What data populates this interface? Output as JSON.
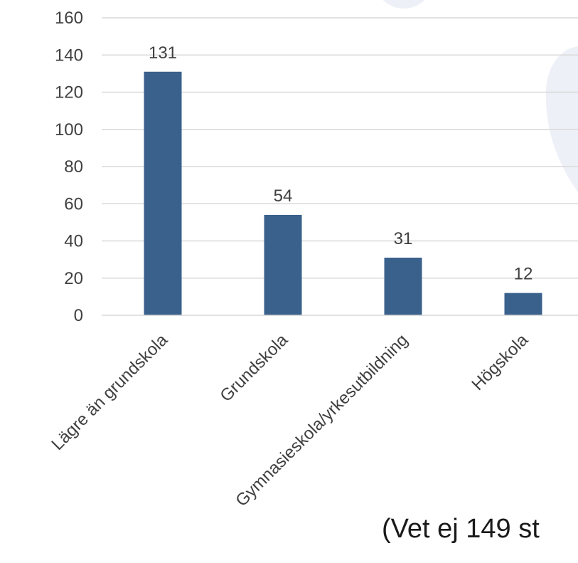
{
  "chart_data": {
    "type": "bar",
    "categories": [
      "Lägre än grundskola",
      "Grundskola",
      "Gymnasieskola/yrkesutbildning",
      "Högskola"
    ],
    "values": [
      131,
      54,
      31,
      12
    ],
    "data_labels": [
      "131",
      "54",
      "31",
      "12"
    ],
    "ylim": [
      0,
      160
    ],
    "yticks": [
      0,
      20,
      40,
      60,
      80,
      100,
      120,
      140,
      160
    ],
    "grid": true,
    "legend": "none",
    "bar_color": "#3a608c",
    "grid_color": "#d9d9d9",
    "text_color": "#404040"
  },
  "note": "(Vet ej 149 st"
}
